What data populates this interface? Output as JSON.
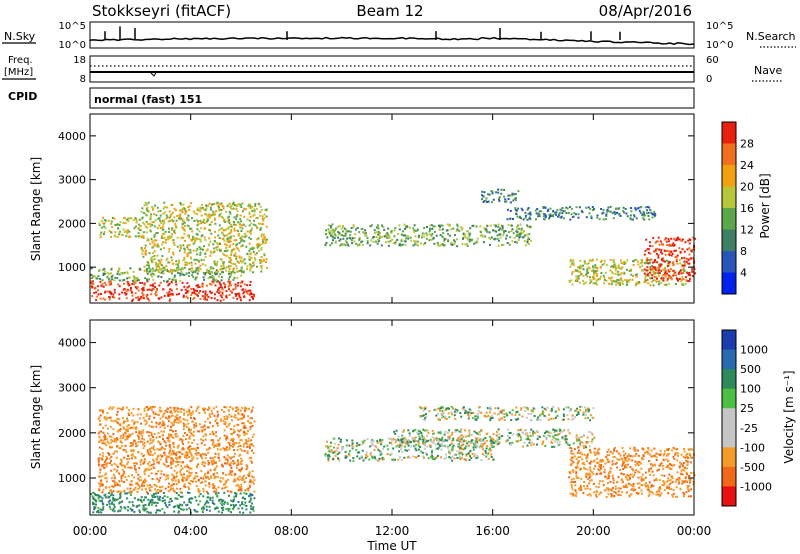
{
  "header": {
    "station": "Stokkseyri (fitACF)",
    "beam": "Beam 12",
    "date": "08/Apr/2016"
  },
  "noise_panel": {
    "left_label": "N.Sky",
    "right_label": "N.Search",
    "left_ticks": [
      "10^5",
      "10^0"
    ],
    "right_ticks": [
      "10^5",
      "10^0"
    ]
  },
  "freq_panel": {
    "left_label_1": "Freq.",
    "left_label_2": "[MHz]",
    "right_label": "Nave",
    "left_ticks": [
      "18",
      "8"
    ],
    "right_ticks": [
      "60",
      "0"
    ]
  },
  "cpid_panel": {
    "label": "CPID",
    "mode": "normal (fast) 151"
  },
  "power_panel": {
    "ylabel": "Slant Range [km]",
    "yticks": [
      "4000",
      "3000",
      "2000",
      "1000"
    ],
    "colorbar_label": "Power [dB]",
    "colorbar_ticks": [
      "28",
      "24",
      "20",
      "16",
      "12",
      "8",
      "4"
    ]
  },
  "velocity_panel": {
    "ylabel": "Slant Range [km]",
    "yticks": [
      "4000",
      "3000",
      "2000",
      "1000"
    ],
    "colorbar_label": "Velocity [m s⁻¹]",
    "colorbar_ticks": [
      "1000",
      "500",
      "100",
      "25",
      "-25",
      "-100",
      "-500",
      "-1000"
    ]
  },
  "x_axis": {
    "ticks": [
      "00:00",
      "04:00",
      "08:00",
      "12:00",
      "16:00",
      "20:00",
      "00:00"
    ],
    "label": "Time UT"
  },
  "colors": {
    "power_scale": [
      "#0022ee",
      "#2a55b8",
      "#3f7f66",
      "#5aa84a",
      "#b8c63a",
      "#f0a010",
      "#f07020",
      "#e82010"
    ],
    "velocity_scale": [
      "#e81010",
      "#f06818",
      "#f49a28",
      "#c6c6c6",
      "#c6c6c6",
      "#4cc046",
      "#2e8a5a",
      "#2a6ab0",
      "#1c3cae"
    ]
  },
  "chart_data": {
    "type": "heatmap",
    "x_range_hours": [
      0,
      24
    ],
    "y_range_km": [
      180,
      4500
    ],
    "power_scale_db": [
      0,
      32
    ],
    "velocity_scale_ms": [
      -1250,
      1250
    ],
    "power_regions": [
      {
        "t0": 0.0,
        "t1": 6.5,
        "r0": 250,
        "r1": 700,
        "level": 7
      },
      {
        "t0": 0.0,
        "t1": 6.0,
        "r0": 700,
        "r1": 1000,
        "level": 3
      },
      {
        "t0": 0.3,
        "t1": 2.0,
        "r0": 1700,
        "r1": 2150,
        "level": 4
      },
      {
        "t0": 2.0,
        "t1": 7.0,
        "r0": 900,
        "r1": 2500,
        "level": 4
      },
      {
        "t0": 9.3,
        "t1": 17.5,
        "r0": 1500,
        "r1": 2000,
        "level": 3
      },
      {
        "t0": 15.5,
        "t1": 17.0,
        "r0": 2500,
        "r1": 2800,
        "level": 2
      },
      {
        "t0": 16.5,
        "t1": 22.5,
        "r0": 2100,
        "r1": 2400,
        "level": 2
      },
      {
        "t0": 19.0,
        "t1": 23.7,
        "r0": 600,
        "r1": 1200,
        "level": 4
      },
      {
        "t0": 22.0,
        "t1": 24.0,
        "r0": 700,
        "r1": 1700,
        "level": 7
      }
    ],
    "velocity_regions": [
      {
        "t0": 0.0,
        "t1": 6.5,
        "r0": 250,
        "r1": 700,
        "vel": 300
      },
      {
        "t0": 0.3,
        "t1": 6.5,
        "r0": 700,
        "r1": 2600,
        "vel": -400
      },
      {
        "t0": 9.3,
        "t1": 16.0,
        "r0": 1400,
        "r1": 1900,
        "vel": 50
      },
      {
        "t0": 12.0,
        "t1": 20.0,
        "r0": 1700,
        "r1": 2100,
        "vel": 0
      },
      {
        "t0": 13.0,
        "t1": 20.0,
        "r0": 2300,
        "r1": 2600,
        "vel": 0
      },
      {
        "t0": 19.0,
        "t1": 24.0,
        "r0": 600,
        "r1": 1700,
        "vel": -400
      }
    ]
  }
}
